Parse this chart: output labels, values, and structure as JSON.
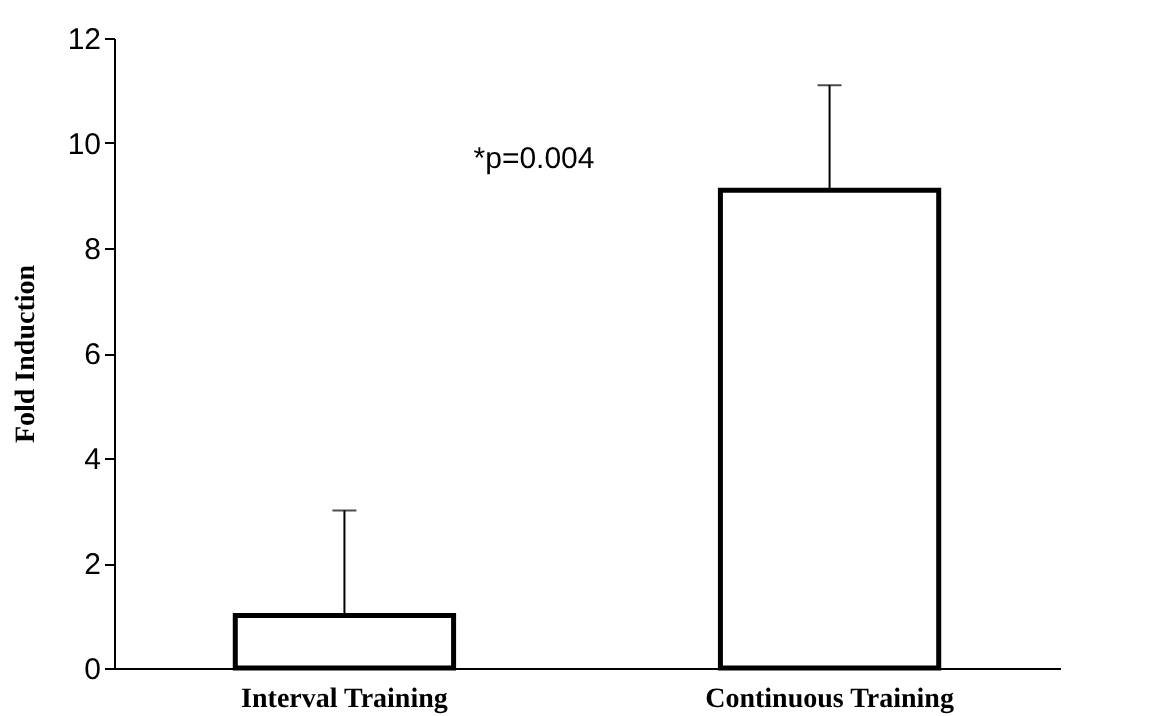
{
  "chart_data": {
    "type": "bar",
    "ylabel": "Fold Induction",
    "categories": [
      "Interval Training",
      "Continuous Training"
    ],
    "values": [
      1.0,
      9.1
    ],
    "errors": [
      [
        1.0,
        3.0
      ],
      [
        9.1,
        11.1
      ]
    ],
    "color": "#ffffff",
    "ylim": [
      0,
      12
    ],
    "yticks": [
      0,
      2,
      4,
      6,
      8,
      10,
      12
    ],
    "grid": false,
    "annotations": [
      "*p=0.004"
    ]
  }
}
